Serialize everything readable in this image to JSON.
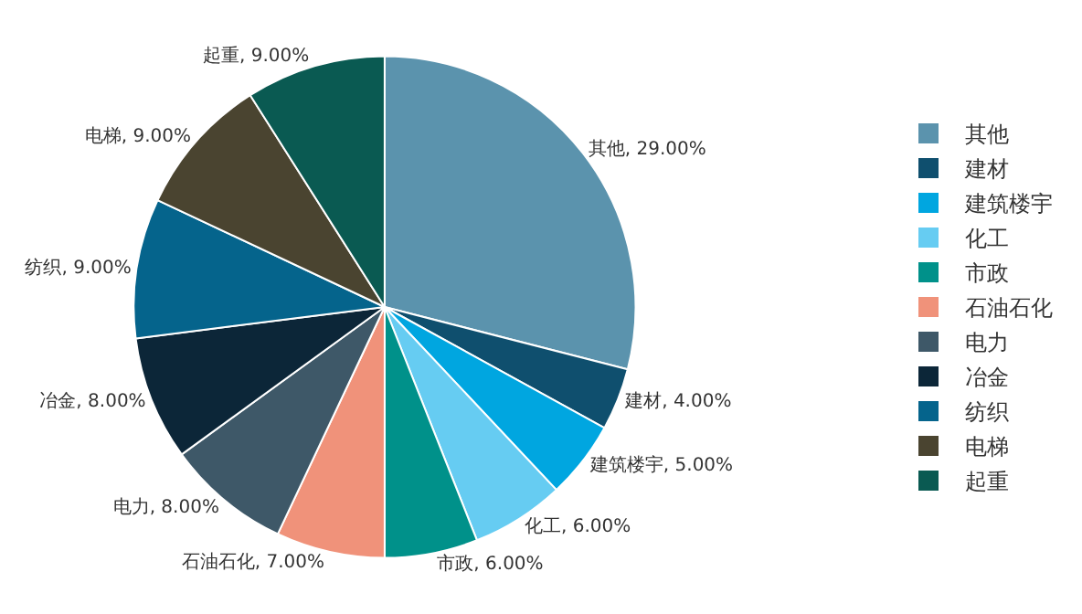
{
  "chart_data": {
    "type": "pie",
    "categories": [
      "其他",
      "建材",
      "建筑楼宇",
      "化工",
      "市政",
      "石油石化",
      "电力",
      "冶金",
      "纺织",
      "电梯",
      "起重"
    ],
    "values": [
      29,
      4,
      5,
      6,
      6,
      7,
      8,
      8,
      9,
      9,
      9
    ],
    "value_labels": [
      "其他, 29.00%",
      "建材, 4.00%",
      "建筑楼宇, 5.00%",
      "化工, 6.00%",
      "市政, 6.00%",
      "石油石化, 7.00%",
      "电力, 8.00%",
      "冶金, 8.00%",
      "纺织, 9.00%",
      "电梯, 9.00%",
      "起重, 9.00%"
    ],
    "colors": [
      "#5b93ad",
      "#0f4f6e",
      "#00a6e0",
      "#66ccf2",
      "#00918a",
      "#f0927a",
      "#3e5868",
      "#0c2638",
      "#05648c",
      "#4a4430",
      "#0a5a52"
    ],
    "legend": "right"
  }
}
